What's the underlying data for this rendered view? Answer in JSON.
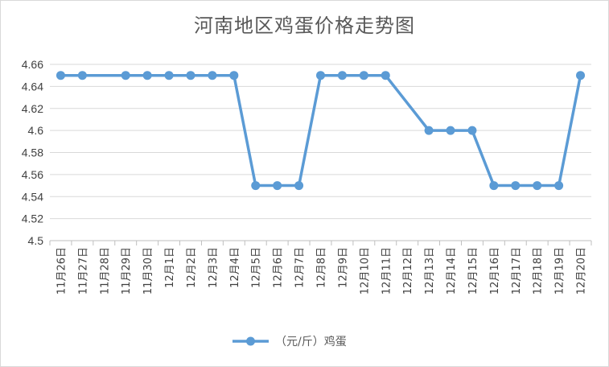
{
  "chart_data": {
    "type": "line",
    "title": "河南地区鸡蛋价格走势图",
    "categories": [
      "11月26日",
      "11月27日",
      "11月28日",
      "11月29日",
      "11月30日",
      "12月1日",
      "12月2日",
      "12月3日",
      "12月4日",
      "12月5日",
      "12月6日",
      "12月7日",
      "12月8日",
      "12月9日",
      "12月10日",
      "12月11日",
      "12月12日",
      "12月13日",
      "12月14日",
      "12月15日",
      "12月16日",
      "12月17日",
      "12月18日",
      "12月19日",
      "12月20日"
    ],
    "series": [
      {
        "name": "（元/斤）鸡蛋",
        "color": "#5b9bd5",
        "values": [
          4.65,
          4.65,
          null,
          4.65,
          4.65,
          4.65,
          4.65,
          4.65,
          4.65,
          4.55,
          4.55,
          4.55,
          4.65,
          4.65,
          4.65,
          4.65,
          null,
          4.6,
          4.6,
          4.6,
          4.55,
          4.55,
          4.55,
          4.55,
          4.65
        ]
      }
    ],
    "ylim": [
      4.5,
      4.66
    ],
    "yticks": [
      "4.66",
      "4.64",
      "4.62",
      "4.6",
      "4.58",
      "4.56",
      "4.54",
      "4.52",
      "4.5"
    ],
    "grid": true,
    "legend": "bottom",
    "xlabel": "",
    "ylabel": ""
  }
}
